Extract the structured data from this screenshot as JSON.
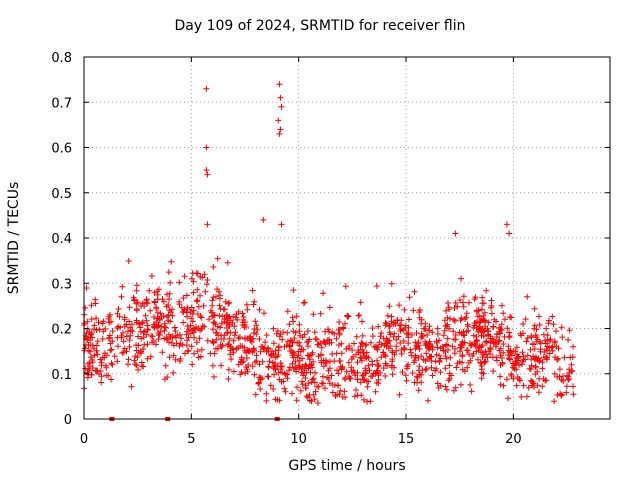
{
  "chart_data": {
    "type": "scatter",
    "title": "Day 109 of 2024, SRMTID for receiver flin",
    "xlabel": "GPS time / hours",
    "ylabel": "SRMTID / TECUs",
    "xlim": [
      0,
      24.5
    ],
    "ylim": [
      0,
      0.8
    ],
    "xticks": [
      0,
      5,
      10,
      15,
      20
    ],
    "yticks": [
      0,
      0.1,
      0.2,
      0.3,
      0.4,
      0.5,
      0.6,
      0.7,
      0.8
    ],
    "xtick_labels": [
      "0",
      "5",
      "10",
      "15",
      "20"
    ],
    "ytick_labels": [
      "0",
      "0.1",
      "0.2",
      "0.3",
      "0.4",
      "0.5",
      "0.6",
      "0.7",
      "0.8"
    ],
    "grid": true,
    "marker": "plus",
    "color": "#ff0000",
    "x_range_of_points": [
      0,
      22.8
    ],
    "zero_markers_x": [
      1.3,
      3.9,
      9.0
    ],
    "outliers": [
      {
        "x": 5.7,
        "y": 0.73
      },
      {
        "x": 5.7,
        "y": 0.6
      },
      {
        "x": 5.7,
        "y": 0.55
      },
      {
        "x": 5.75,
        "y": 0.54
      },
      {
        "x": 9.1,
        "y": 0.74
      },
      {
        "x": 9.15,
        "y": 0.71
      },
      {
        "x": 9.2,
        "y": 0.69
      },
      {
        "x": 9.05,
        "y": 0.66
      },
      {
        "x": 9.15,
        "y": 0.64
      },
      {
        "x": 9.1,
        "y": 0.63
      },
      {
        "x": 8.35,
        "y": 0.44
      },
      {
        "x": 9.2,
        "y": 0.43
      },
      {
        "x": 5.75,
        "y": 0.43
      },
      {
        "x": 17.3,
        "y": 0.41
      },
      {
        "x": 19.7,
        "y": 0.43
      },
      {
        "x": 19.8,
        "y": 0.41
      }
    ],
    "series_profile": [
      {
        "x": 0,
        "y": 0.17
      },
      {
        "x": 1,
        "y": 0.15
      },
      {
        "x": 1.5,
        "y": 0.19
      },
      {
        "x": 2.5,
        "y": 0.2
      },
      {
        "x": 3.5,
        "y": 0.22
      },
      {
        "x": 4.5,
        "y": 0.19
      },
      {
        "x": 5.5,
        "y": 0.23
      },
      {
        "x": 6.5,
        "y": 0.2
      },
      {
        "x": 7.5,
        "y": 0.17
      },
      {
        "x": 8.5,
        "y": 0.12
      },
      {
        "x": 9.5,
        "y": 0.14
      },
      {
        "x": 10.5,
        "y": 0.12
      },
      {
        "x": 11.5,
        "y": 0.13
      },
      {
        "x": 12.5,
        "y": 0.13
      },
      {
        "x": 13.5,
        "y": 0.12
      },
      {
        "x": 14.5,
        "y": 0.19
      },
      {
        "x": 15.5,
        "y": 0.16
      },
      {
        "x": 16.5,
        "y": 0.13
      },
      {
        "x": 17.5,
        "y": 0.17
      },
      {
        "x": 18.5,
        "y": 0.18
      },
      {
        "x": 19.5,
        "y": 0.14
      },
      {
        "x": 20.5,
        "y": 0.13
      },
      {
        "x": 21.5,
        "y": 0.15
      },
      {
        "x": 22.5,
        "y": 0.1
      }
    ]
  }
}
